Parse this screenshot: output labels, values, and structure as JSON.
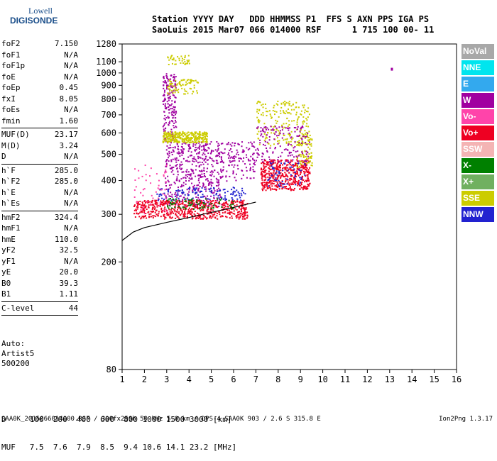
{
  "logo": {
    "line1": "Lowell",
    "line2": "DIGISONDE"
  },
  "header": {
    "line1": "Station YYYY DAY   DDD HHMMSS P1  FFS S AXN PPS IGA PS",
    "line2": "SaoLuis 2015 Mar07 066 014000 RSF      1 715 100 00- 11"
  },
  "params": [
    {
      "name": "foF2",
      "value": "7.150"
    },
    {
      "name": "foF1",
      "value": "N/A"
    },
    {
      "name": "foF1p",
      "value": "N/A"
    },
    {
      "name": "foE",
      "value": "N/A"
    },
    {
      "name": "foEp",
      "value": "0.45"
    },
    {
      "name": "fxI",
      "value": "8.05"
    },
    {
      "name": "foEs",
      "value": "N/A"
    },
    {
      "name": "fmin",
      "value": "1.60"
    },
    {
      "sep": true
    },
    {
      "name": "MUF(D)",
      "value": "23.17"
    },
    {
      "name": "M(D)",
      "value": "3.24"
    },
    {
      "name": "D",
      "value": "N/A"
    },
    {
      "sep": true
    },
    {
      "name": "h`F",
      "value": "285.0"
    },
    {
      "name": "h`F2",
      "value": "285.0"
    },
    {
      "name": "h`E",
      "value": "N/A"
    },
    {
      "name": "h`Es",
      "value": "N/A"
    },
    {
      "sep": true
    },
    {
      "name": "hmF2",
      "value": "324.4"
    },
    {
      "name": "hmF1",
      "value": "N/A"
    },
    {
      "name": "hmE",
      "value": "110.0"
    },
    {
      "name": "yF2",
      "value": "32.5"
    },
    {
      "name": "yF1",
      "value": "N/A"
    },
    {
      "name": "yE",
      "value": "20.0"
    },
    {
      "name": "B0",
      "value": "39.3"
    },
    {
      "name": "B1",
      "value": "1.11"
    },
    {
      "sep": true
    },
    {
      "name": "C-level",
      "value": "44"
    },
    {
      "sep": true
    }
  ],
  "auto": {
    "line1": "Auto:",
    "line2": "Artist5",
    "line3": "500200"
  },
  "legend": [
    {
      "label": "NoVal",
      "color": "#a8a8a8"
    },
    {
      "label": "NNE",
      "color": "#00e5ee"
    },
    {
      "label": "E",
      "color": "#33a9ee"
    },
    {
      "label": "W",
      "color": "#a000a0"
    },
    {
      "label": "Vo-",
      "color": "#ff44aa"
    },
    {
      "label": "Vo+",
      "color": "#ee0022"
    },
    {
      "label": "SSW",
      "color": "#f4b4b4"
    },
    {
      "label": "X-",
      "color": "#008000"
    },
    {
      "label": "X+",
      "color": "#70b060"
    },
    {
      "label": "SSE",
      "color": "#cccc00"
    },
    {
      "label": "NNW",
      "color": "#2222d0"
    }
  ],
  "dtable": {
    "line1": "D     100  200  400  600  800 1000 1500 3000 [km]",
    "line2": "MUF   7.5  7.6  7.9  8.5  9.4 10.6 14.1 23.2 [MHz]"
  },
  "footer": {
    "left": "SAA0K_2015066014000.RSF / 300fx256h 50 kHz 5.0 km / DPS-4 SAA0K 903 / 2.6 S 315.8 E",
    "right": "Ion2Png 1.3.17"
  },
  "chart_data": {
    "type": "scatter",
    "xlim": [
      1,
      16
    ],
    "ylim": [
      80,
      1280
    ],
    "yscale": "log",
    "x_ticks": [
      1,
      2,
      3,
      4,
      5,
      6,
      7,
      8,
      9,
      10,
      11,
      12,
      13,
      14,
      15,
      16
    ],
    "y_ticks": [
      80,
      200,
      300,
      400,
      500,
      600,
      700,
      800,
      900,
      1000,
      1100,
      1280
    ],
    "xlabel": "",
    "ylabel": "",
    "clusters": [
      {
        "color": "#a000a0",
        "x": [
          2.9,
          5.5
        ],
        "y": [
          320,
          560
        ],
        "n": 500
      },
      {
        "color": "#a000a0",
        "x": [
          2.8,
          3.4
        ],
        "y": [
          560,
          1000
        ],
        "n": 200
      },
      {
        "color": "#cccc00",
        "x": [
          2.8,
          4.8
        ],
        "y": [
          555,
          610
        ],
        "n": 320
      },
      {
        "color": "#cccc00",
        "x": [
          3.0,
          4.4
        ],
        "y": [
          840,
          950
        ],
        "n": 80
      },
      {
        "color": "#cccc00",
        "x": [
          3.0,
          4.0
        ],
        "y": [
          1080,
          1170
        ],
        "n": 40
      },
      {
        "color": "#ee0022",
        "x": [
          1.5,
          6.6
        ],
        "y": [
          290,
          340
        ],
        "n": 600
      },
      {
        "color": "#ee0022",
        "x": [
          7.2,
          9.4
        ],
        "y": [
          370,
          480
        ],
        "n": 500
      },
      {
        "color": "#2222d0",
        "x": [
          2.5,
          6.5
        ],
        "y": [
          340,
          380
        ],
        "n": 120
      },
      {
        "color": "#2222d0",
        "x": [
          7.5,
          9.2
        ],
        "y": [
          380,
          470
        ],
        "n": 60
      },
      {
        "color": "#cccc00",
        "x": [
          7.0,
          9.4
        ],
        "y": [
          540,
          790
        ],
        "n": 200
      },
      {
        "color": "#cccc00",
        "x": [
          8.8,
          9.5
        ],
        "y": [
          450,
          600
        ],
        "n": 90
      },
      {
        "color": "#008000",
        "x": [
          3.0,
          6.0
        ],
        "y": [
          315,
          345
        ],
        "n": 80
      },
      {
        "color": "#a000a0",
        "x": [
          5.5,
          7.0
        ],
        "y": [
          400,
          560
        ],
        "n": 120
      },
      {
        "color": "#ff44aa",
        "x": [
          1.5,
          3.0
        ],
        "y": [
          300,
          460
        ],
        "n": 50
      },
      {
        "color": "#a000a0",
        "x": [
          7.0,
          9.4
        ],
        "y": [
          470,
          640
        ],
        "n": 150
      }
    ],
    "trace_x": [
      1,
      1.5,
      2,
      3,
      4,
      5,
      6,
      7.0
    ],
    "trace_y": [
      240,
      258,
      268,
      280,
      292,
      305,
      318,
      333
    ],
    "marker": {
      "x": 13.1,
      "y": [
        1020,
        1045
      ],
      "color": "#a000a0"
    }
  }
}
